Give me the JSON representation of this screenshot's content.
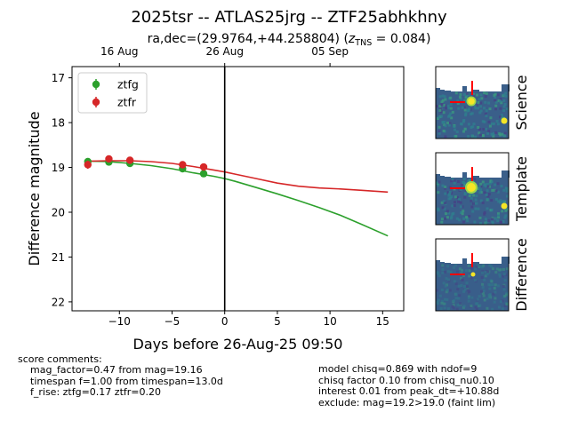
{
  "title": "2025tsr -- ATLAS25jrg -- ZTF25abhkhny",
  "subtitle_prefix": "ra,dec=(29.9764,+44.258804) (",
  "subtitle_z_symbol": "z",
  "subtitle_z_sub": "TNS",
  "subtitle_z_value": " = 0.084)",
  "chart_data": {
    "type": "scatter",
    "xlabel": "Days before 26-Aug-25 09:50",
    "ylabel": "Difference magnitude",
    "xlim": [
      -14.5,
      17
    ],
    "ylim": [
      22.2,
      16.75
    ],
    "y_inverted": true,
    "x_ticks": [
      -10,
      -5,
      0,
      5,
      10,
      15
    ],
    "x_tick_labels": [
      "−10",
      "−5",
      "0",
      "5",
      "10",
      "15"
    ],
    "y_ticks": [
      17,
      18,
      19,
      20,
      21,
      22
    ],
    "y_tick_labels": [
      "17",
      "18",
      "19",
      "20",
      "21",
      "22"
    ],
    "top_axis_ticks": [
      -10,
      0,
      10
    ],
    "top_axis_labels": [
      "16 Aug",
      "26 Aug",
      "05 Sep"
    ],
    "vline_x": 0,
    "legend_position": "top-left",
    "series": [
      {
        "name": "ztfg",
        "color": "#2ca02c",
        "points": [
          {
            "x": -13,
            "y": 18.87,
            "err": 0.08
          },
          {
            "x": -11,
            "y": 18.88,
            "err": 0.06
          },
          {
            "x": -9,
            "y": 18.91,
            "err": 0.06
          },
          {
            "x": -4,
            "y": 19.03,
            "err": 0.07
          },
          {
            "x": -2,
            "y": 19.14,
            "err": 0.07
          }
        ],
        "model": [
          {
            "x": -13,
            "y": 18.86
          },
          {
            "x": -11,
            "y": 18.87
          },
          {
            "x": -9,
            "y": 18.91
          },
          {
            "x": -7,
            "y": 18.96
          },
          {
            "x": -5,
            "y": 19.03
          },
          {
            "x": -3,
            "y": 19.12
          },
          {
            "x": -1,
            "y": 19.2
          },
          {
            "x": 0,
            "y": 19.25
          },
          {
            "x": 1,
            "y": 19.31
          },
          {
            "x": 3,
            "y": 19.45
          },
          {
            "x": 5,
            "y": 19.59
          },
          {
            "x": 7,
            "y": 19.74
          },
          {
            "x": 9,
            "y": 19.9
          },
          {
            "x": 11,
            "y": 20.07
          },
          {
            "x": 13,
            "y": 20.27
          },
          {
            "x": 15.5,
            "y": 20.53
          }
        ]
      },
      {
        "name": "ztfr",
        "color": "#d62728",
        "points": [
          {
            "x": -13,
            "y": 18.94,
            "err": 0.09
          },
          {
            "x": -11,
            "y": 18.81,
            "err": 0.07
          },
          {
            "x": -9,
            "y": 18.84,
            "err": 0.06
          },
          {
            "x": -4,
            "y": 18.94,
            "err": 0.07
          },
          {
            "x": -2,
            "y": 18.99,
            "err": 0.08
          }
        ],
        "model": [
          {
            "x": -13,
            "y": 18.86
          },
          {
            "x": -11,
            "y": 18.85
          },
          {
            "x": -9,
            "y": 18.85
          },
          {
            "x": -7,
            "y": 18.87
          },
          {
            "x": -5,
            "y": 18.91
          },
          {
            "x": -3,
            "y": 18.98
          },
          {
            "x": -1,
            "y": 19.06
          },
          {
            "x": 0,
            "y": 19.1
          },
          {
            "x": 1,
            "y": 19.15
          },
          {
            "x": 3,
            "y": 19.25
          },
          {
            "x": 5,
            "y": 19.35
          },
          {
            "x": 7,
            "y": 19.42
          },
          {
            "x": 9,
            "y": 19.46
          },
          {
            "x": 11,
            "y": 19.48
          },
          {
            "x": 13,
            "y": 19.51
          },
          {
            "x": 15.5,
            "y": 19.55
          }
        ]
      }
    ]
  },
  "stamps": [
    {
      "label": "Science",
      "kind": "science"
    },
    {
      "label": "Template",
      "kind": "template"
    },
    {
      "label": "Difference",
      "kind": "difference"
    }
  ],
  "comments": {
    "header": "score comments:",
    "left": [
      "mag_factor=0.47 from mag=19.16",
      "timespan f=1.00 from timespan=13.0d",
      "f_rise: ztfg=0.17 ztfr=0.20"
    ],
    "right": [
      "model chisq=0.869 with ndof=9",
      "chisq factor 0.10 from chisq_nu0.10",
      "interest 0.01 from peak_dt=+10.88d",
      "exclude: mag=19.2>19.0 (faint lim)"
    ]
  },
  "colors": {
    "stamp_bg": "#3a5f8a",
    "stamp_bright": "#f5e626",
    "marker_red": "#ff0000"
  }
}
